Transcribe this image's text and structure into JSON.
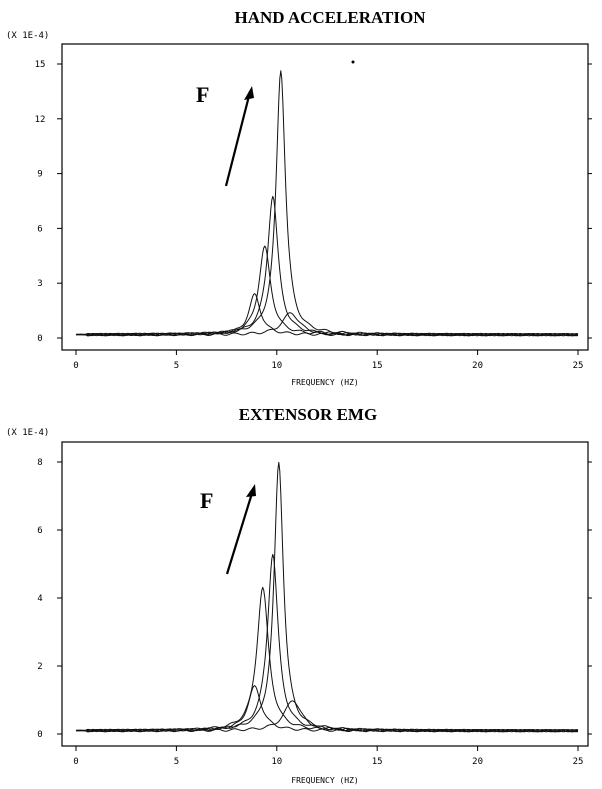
{
  "chart_data": [
    {
      "type": "line",
      "title": "HAND ACCELERATION",
      "exponent_label": "(X 1E-4)",
      "xlabel": "FREQUENCY (HZ)",
      "xlim": [
        0,
        25
      ],
      "ylim": [
        0,
        15
      ],
      "xticks": [
        "0",
        "5",
        "10",
        "15",
        "20",
        "25"
      ],
      "yticks": [
        "0",
        "3",
        "6",
        "9",
        "12",
        "15"
      ],
      "annotation": "F",
      "series": [
        {
          "peak_hz": 8.9,
          "peak": 2.2,
          "width": 0.35
        },
        {
          "peak_hz": 9.4,
          "peak": 4.8,
          "width": 0.35
        },
        {
          "peak_hz": 9.8,
          "peak": 7.6,
          "width": 0.32
        },
        {
          "peak_hz": 10.2,
          "peak": 14.5,
          "width": 0.28
        },
        {
          "peak_hz": 10.7,
          "peak": 1.2,
          "width": 0.5
        }
      ]
    },
    {
      "type": "line",
      "title": "EXTENSOR EMG",
      "exponent_label": "(X 1E-4)",
      "xlabel": "FREQUENCY (HZ)",
      "xlim": [
        0,
        25
      ],
      "ylim": [
        0,
        8
      ],
      "xticks": [
        "0",
        "5",
        "10",
        "15",
        "20",
        "25"
      ],
      "yticks": [
        "0",
        "2",
        "4",
        "6",
        "8"
      ],
      "annotation": "F",
      "series": [
        {
          "peak_hz": 8.9,
          "peak": 1.3,
          "width": 0.4
        },
        {
          "peak_hz": 9.3,
          "peak": 4.2,
          "width": 0.35
        },
        {
          "peak_hz": 9.8,
          "peak": 5.2,
          "width": 0.32
        },
        {
          "peak_hz": 10.1,
          "peak": 7.9,
          "width": 0.28
        },
        {
          "peak_hz": 10.8,
          "peak": 0.9,
          "width": 0.5
        }
      ]
    }
  ]
}
